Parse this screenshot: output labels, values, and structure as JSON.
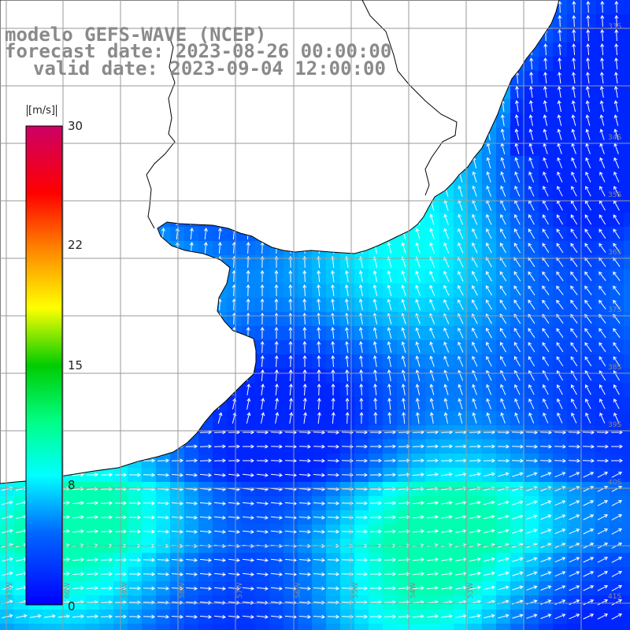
{
  "header": {
    "line1": "modelo GEFS-WAVE (NCEP)",
    "line2": "forecast date: 2023-08-26 00:00:00",
    "line3": "valid date: 2023-09-04 12:00:00"
  },
  "colorbar": {
    "unit": "[m/s]",
    "ticks": [
      "30",
      "22",
      "15",
      "8",
      "0"
    ],
    "tick_values": [
      30,
      22,
      15,
      8,
      0
    ],
    "range": [
      0,
      30
    ]
  },
  "grid_labels": {
    "lat": [
      "33S",
      "34S",
      "35S",
      "36S",
      "37S",
      "38S",
      "39S",
      "40S",
      "41S"
    ],
    "lon": [
      "61W",
      "60W",
      "59W",
      "58W",
      "57W",
      "56W",
      "55W",
      "54W",
      "53W"
    ]
  },
  "colors": {
    "land": "#ffffff",
    "coast": "#000000",
    "grid": "#9a9a9a",
    "arrow": "#ffffff",
    "title": "#8a8a8a"
  },
  "map_data": {
    "variable": "wind speed at 10 m with direction arrows",
    "speed_scale_ms": [
      0,
      30
    ]
  }
}
